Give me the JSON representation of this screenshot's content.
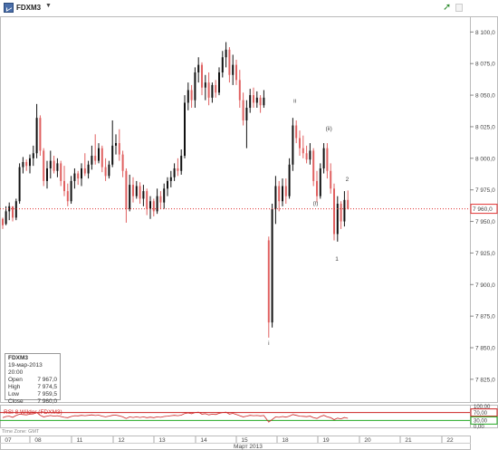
{
  "window": {
    "symbol": "FDXM3",
    "menu_caret": "▼"
  },
  "info_box": {
    "symbol": "FDXM3",
    "datetime": "19-мар-2013 20:00",
    "rows": [
      {
        "label": "Open",
        "value": "7 967,0"
      },
      {
        "label": "High",
        "value": "7 974,5"
      },
      {
        "label": "Low",
        "value": "7 959,5"
      },
      {
        "label": "Close",
        "value": "7 960,0"
      }
    ]
  },
  "colors": {
    "up": "#111111",
    "down": "#e06060",
    "price_line": "#e03030",
    "rsi": "#cc2222",
    "level_30": "#22aa22"
  },
  "chart_data": {
    "type": "candlestick",
    "title": "FDXM3",
    "y_ticks": [
      "8 100,0",
      "8 075,0",
      "8 050,0",
      "8 025,0",
      "8 000,0",
      "7 975,0",
      "7 950,0",
      "7 925,0",
      "7 900,0",
      "7 875,0",
      "7 850,0",
      "7 825,0"
    ],
    "y_range": [
      7807,
      8111
    ],
    "current_price": 7960,
    "current_price_label": "7 960,0",
    "x_tick_labels": [
      "07",
      "08",
      "11",
      "12",
      "13",
      "14",
      "15",
      "18",
      "19",
      "20",
      "21",
      "22"
    ],
    "x_axis_label": "Март 2013",
    "wave_labels": [
      {
        "text": "i",
        "x": 296.8,
        "y": 7852
      },
      {
        "text": "ii",
        "x": 325.6,
        "y": 8044
      },
      {
        "text": "(i)",
        "x": 348.5,
        "y": 7963
      },
      {
        "text": "(ii)",
        "x": 363.2,
        "y": 8022
      },
      {
        "text": "1",
        "x": 372.0,
        "y": 7919
      },
      {
        "text": "2",
        "x": 383.4,
        "y": 7982
      }
    ],
    "candles": [
      {
        "t": 3.0,
        "o": 7952,
        "h": 7953,
        "l": 7944,
        "c": 7947
      },
      {
        "t": 6.6,
        "o": 7948,
        "h": 7962,
        "l": 7947,
        "c": 7958
      },
      {
        "t": 10.2,
        "o": 7958,
        "h": 7965,
        "l": 7951,
        "c": 7962
      },
      {
        "t": 14.0,
        "o": 7962,
        "h": 7959,
        "l": 7950,
        "c": 7953
      },
      {
        "t": 17.8,
        "o": 7953,
        "h": 7968,
        "l": 7951,
        "c": 7966
      },
      {
        "t": 21.6,
        "o": 7966,
        "h": 7996,
        "l": 7964,
        "c": 7993
      },
      {
        "t": 25.4,
        "o": 7993,
        "h": 8001,
        "l": 7988,
        "c": 7997
      },
      {
        "t": 29.2,
        "o": 7997,
        "h": 7999,
        "l": 7990,
        "c": 7994
      },
      {
        "t": 33.0,
        "o": 7994,
        "h": 8003,
        "l": 7988,
        "c": 8000
      },
      {
        "t": 36.8,
        "o": 8000,
        "h": 8010,
        "l": 7994,
        "c": 8004
      },
      {
        "t": 40.6,
        "o": 8004,
        "h": 8043,
        "l": 8000,
        "c": 8032
      },
      {
        "t": 44.4,
        "o": 8032,
        "h": 8034,
        "l": 8002,
        "c": 8006
      },
      {
        "t": 48.2,
        "o": 8006,
        "h": 8008,
        "l": 7978,
        "c": 7982
      },
      {
        "t": 52.0,
        "o": 7982,
        "h": 7998,
        "l": 7976,
        "c": 7992
      },
      {
        "t": 55.8,
        "o": 7992,
        "h": 8006,
        "l": 7984,
        "c": 7998
      },
      {
        "t": 59.6,
        "o": 7998,
        "h": 8002,
        "l": 7988,
        "c": 7990
      },
      {
        "t": 63.4,
        "o": 7990,
        "h": 8000,
        "l": 7985,
        "c": 7996
      },
      {
        "t": 67.2,
        "o": 7996,
        "h": 7998,
        "l": 7978,
        "c": 7982
      },
      {
        "t": 71.0,
        "o": 7982,
        "h": 7994,
        "l": 7970,
        "c": 7974
      },
      {
        "t": 74.8,
        "o": 7974,
        "h": 7980,
        "l": 7962,
        "c": 7966
      },
      {
        "t": 78.6,
        "o": 7966,
        "h": 7986,
        "l": 7964,
        "c": 7982
      },
      {
        "t": 82.4,
        "o": 7982,
        "h": 7992,
        "l": 7976,
        "c": 7988
      },
      {
        "t": 86.2,
        "o": 7988,
        "h": 7990,
        "l": 7979,
        "c": 7984
      },
      {
        "t": 90.0,
        "o": 7984,
        "h": 7996,
        "l": 7978,
        "c": 7992
      },
      {
        "t": 93.8,
        "o": 7992,
        "h": 8004,
        "l": 7986,
        "c": 7988
      },
      {
        "t": 97.6,
        "o": 7988,
        "h": 7998,
        "l": 7984,
        "c": 7995
      },
      {
        "t": 101.4,
        "o": 7995,
        "h": 8010,
        "l": 7991,
        "c": 8002
      },
      {
        "t": 105.2,
        "o": 8002,
        "h": 8019,
        "l": 7995,
        "c": 7998
      },
      {
        "t": 109.0,
        "o": 7998,
        "h": 8012,
        "l": 7996,
        "c": 8008
      },
      {
        "t": 112.8,
        "o": 8008,
        "h": 8010,
        "l": 7989,
        "c": 7993
      },
      {
        "t": 116.6,
        "o": 7993,
        "h": 8000,
        "l": 7982,
        "c": 7986
      },
      {
        "t": 120.4,
        "o": 7986,
        "h": 7998,
        "l": 7984,
        "c": 7995
      },
      {
        "t": 124.2,
        "o": 7995,
        "h": 8030,
        "l": 7993,
        "c": 8010
      },
      {
        "t": 128.0,
        "o": 8010,
        "h": 8019,
        "l": 8003,
        "c": 8012
      },
      {
        "t": 131.8,
        "o": 8012,
        "h": 8023,
        "l": 7998,
        "c": 8003
      },
      {
        "t": 135.6,
        "o": 8003,
        "h": 8006,
        "l": 7985,
        "c": 7990
      },
      {
        "t": 139.4,
        "o": 7990,
        "h": 7992,
        "l": 7949,
        "c": 7960
      },
      {
        "t": 143.2,
        "o": 7960,
        "h": 7987,
        "l": 7958,
        "c": 7979
      },
      {
        "t": 147.0,
        "o": 7979,
        "h": 7985,
        "l": 7965,
        "c": 7970
      },
      {
        "t": 150.8,
        "o": 7970,
        "h": 7982,
        "l": 7968,
        "c": 7978
      },
      {
        "t": 154.6,
        "o": 7978,
        "h": 7981,
        "l": 7964,
        "c": 7968
      },
      {
        "t": 158.4,
        "o": 7968,
        "h": 7979,
        "l": 7962,
        "c": 7974
      },
      {
        "t": 162.2,
        "o": 7974,
        "h": 7976,
        "l": 7955,
        "c": 7960
      },
      {
        "t": 166.0,
        "o": 7960,
        "h": 7970,
        "l": 7952,
        "c": 7966
      },
      {
        "t": 169.8,
        "o": 7966,
        "h": 7968,
        "l": 7954,
        "c": 7958
      },
      {
        "t": 173.6,
        "o": 7958,
        "h": 7976,
        "l": 7956,
        "c": 7970
      },
      {
        "t": 177.4,
        "o": 7970,
        "h": 7974,
        "l": 7960,
        "c": 7965
      },
      {
        "t": 181.2,
        "o": 7965,
        "h": 7980,
        "l": 7960,
        "c": 7976
      },
      {
        "t": 185.0,
        "o": 7976,
        "h": 7985,
        "l": 7970,
        "c": 7982
      },
      {
        "t": 188.8,
        "o": 7982,
        "h": 7990,
        "l": 7977,
        "c": 7985
      },
      {
        "t": 192.6,
        "o": 7985,
        "h": 7996,
        "l": 7982,
        "c": 7992
      },
      {
        "t": 196.4,
        "o": 7992,
        "h": 8000,
        "l": 7986,
        "c": 7990
      },
      {
        "t": 200.2,
        "o": 7990,
        "h": 8007,
        "l": 7987,
        "c": 8002
      },
      {
        "t": 204.0,
        "o": 8002,
        "h": 8050,
        "l": 8000,
        "c": 8044
      },
      {
        "t": 207.8,
        "o": 8044,
        "h": 8060,
        "l": 8038,
        "c": 8054
      },
      {
        "t": 211.6,
        "o": 8054,
        "h": 8058,
        "l": 8040,
        "c": 8046
      },
      {
        "t": 215.4,
        "o": 8046,
        "h": 8072,
        "l": 8040,
        "c": 8068
      },
      {
        "t": 219.2,
        "o": 8068,
        "h": 8080,
        "l": 8060,
        "c": 8074
      },
      {
        "t": 223.0,
        "o": 8074,
        "h": 8076,
        "l": 8050,
        "c": 8056
      },
      {
        "t": 226.8,
        "o": 8056,
        "h": 8066,
        "l": 8046,
        "c": 8060
      },
      {
        "t": 230.6,
        "o": 8060,
        "h": 8068,
        "l": 8042,
        "c": 8048
      },
      {
        "t": 234.4,
        "o": 8048,
        "h": 8060,
        "l": 8044,
        "c": 8058
      },
      {
        "t": 238.2,
        "o": 8058,
        "h": 8062,
        "l": 8048,
        "c": 8052
      },
      {
        "t": 242.0,
        "o": 8052,
        "h": 8072,
        "l": 8050,
        "c": 8068
      },
      {
        "t": 245.8,
        "o": 8068,
        "h": 8085,
        "l": 8064,
        "c": 8080
      },
      {
        "t": 249.6,
        "o": 8080,
        "h": 8092,
        "l": 8072,
        "c": 8086
      },
      {
        "t": 253.4,
        "o": 8086,
        "h": 8088,
        "l": 8060,
        "c": 8066
      },
      {
        "t": 257.2,
        "o": 8066,
        "h": 8082,
        "l": 8058,
        "c": 8074
      },
      {
        "t": 261.0,
        "o": 8074,
        "h": 8078,
        "l": 8058,
        "c": 8062
      },
      {
        "t": 264.8,
        "o": 8062,
        "h": 8070,
        "l": 8040,
        "c": 8046
      },
      {
        "t": 268.6,
        "o": 8046,
        "h": 8052,
        "l": 8026,
        "c": 8030
      },
      {
        "t": 272.4,
        "o": 8030,
        "h": 8046,
        "l": 8008,
        "c": 8040
      },
      {
        "t": 276.2,
        "o": 8040,
        "h": 8055,
        "l": 8036,
        "c": 8050
      },
      {
        "t": 280.0,
        "o": 8050,
        "h": 8056,
        "l": 8040,
        "c": 8044
      },
      {
        "t": 283.8,
        "o": 8044,
        "h": 8053,
        "l": 8040,
        "c": 8048
      },
      {
        "t": 287.6,
        "o": 8048,
        "h": 8050,
        "l": 8036,
        "c": 8042
      },
      {
        "t": 291.4,
        "o": 8042,
        "h": 8054,
        "l": 8040,
        "c": 8048
      },
      {
        "t": 296.8,
        "o": 7935,
        "h": 7938,
        "l": 7858,
        "c": 7870
      },
      {
        "t": 300.6,
        "o": 7870,
        "h": 7964,
        "l": 7866,
        "c": 7960
      },
      {
        "t": 304.4,
        "o": 7960,
        "h": 7986,
        "l": 7948,
        "c": 7978
      },
      {
        "t": 308.2,
        "o": 7978,
        "h": 7982,
        "l": 7958,
        "c": 7966
      },
      {
        "t": 312.0,
        "o": 7966,
        "h": 7984,
        "l": 7962,
        "c": 7978
      },
      {
        "t": 315.8,
        "o": 7978,
        "h": 7984,
        "l": 7964,
        "c": 7970
      },
      {
        "t": 319.6,
        "o": 7970,
        "h": 8000,
        "l": 7968,
        "c": 7995
      },
      {
        "t": 323.4,
        "o": 7995,
        "h": 8032,
        "l": 7990,
        "c": 8026
      },
      {
        "t": 327.2,
        "o": 8026,
        "h": 8030,
        "l": 8012,
        "c": 8016
      },
      {
        "t": 331.0,
        "o": 8016,
        "h": 8022,
        "l": 8002,
        "c": 8008
      },
      {
        "t": 334.8,
        "o": 8008,
        "h": 8018,
        "l": 8000,
        "c": 8004
      },
      {
        "t": 338.6,
        "o": 8004,
        "h": 8010,
        "l": 7996,
        "c": 7999
      },
      {
        "t": 342.4,
        "o": 7999,
        "h": 8012,
        "l": 7995,
        "c": 8006
      },
      {
        "t": 346.2,
        "o": 8006,
        "h": 8008,
        "l": 7978,
        "c": 7982
      },
      {
        "t": 350.0,
        "o": 7982,
        "h": 7990,
        "l": 7965,
        "c": 7970
      },
      {
        "t": 353.8,
        "o": 7970,
        "h": 7996,
        "l": 7968,
        "c": 7992
      },
      {
        "t": 357.6,
        "o": 7992,
        "h": 8012,
        "l": 7988,
        "c": 8008
      },
      {
        "t": 361.4,
        "o": 8008,
        "h": 8012,
        "l": 7984,
        "c": 7990
      },
      {
        "t": 365.2,
        "o": 7990,
        "h": 7996,
        "l": 7972,
        "c": 7976
      },
      {
        "t": 369.0,
        "o": 7976,
        "h": 7980,
        "l": 7935,
        "c": 7940
      },
      {
        "t": 372.8,
        "o": 7940,
        "h": 7970,
        "l": 7934,
        "c": 7964
      },
      {
        "t": 376.6,
        "o": 7964,
        "h": 7966,
        "l": 7944,
        "c": 7950
      },
      {
        "t": 380.4,
        "o": 7950,
        "h": 7974,
        "l": 7946,
        "c": 7967
      },
      {
        "t": 384.2,
        "o": 7967,
        "h": 7974.5,
        "l": 7959.5,
        "c": 7960
      }
    ],
    "rsi": {
      "label": "RSI 8 Wilder (FDXM3)",
      "y_ticks": [
        "100,00",
        "70,00",
        "30,00",
        "0,00"
      ],
      "levels": [
        70,
        30
      ],
      "values": [
        44,
        50,
        52,
        46,
        55,
        62,
        60,
        58,
        62,
        63,
        70,
        56,
        48,
        52,
        55,
        52,
        54,
        50,
        46,
        44,
        50,
        54,
        53,
        56,
        54,
        56,
        58,
        55,
        57,
        52,
        48,
        52,
        56,
        57,
        53,
        48,
        40,
        48,
        45,
        48,
        45,
        48,
        44,
        47,
        44,
        48,
        46,
        50,
        52,
        54,
        56,
        54,
        57,
        65,
        68,
        64,
        70,
        72,
        62,
        64,
        58,
        62,
        60,
        66,
        70,
        72,
        62,
        66,
        60,
        54,
        48,
        52,
        56,
        54,
        55,
        53,
        55,
        22,
        35,
        48,
        46,
        50,
        47,
        52,
        60,
        56,
        52,
        51,
        49,
        52,
        44,
        40,
        50,
        56,
        48,
        44,
        34,
        42,
        38,
        45,
        41
      ]
    }
  }
}
